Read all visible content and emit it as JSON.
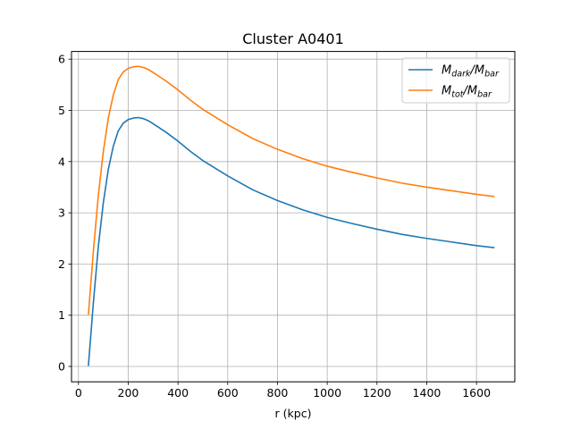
{
  "chart_data": {
    "type": "line",
    "title": "Cluster A0401",
    "xlabel": "r (kpc)",
    "ylabel": "",
    "xlim": [
      -28,
      1754
    ],
    "ylim": [
      -0.3,
      6.15
    ],
    "xticks": [
      0,
      200,
      400,
      600,
      800,
      1000,
      1200,
      1400,
      1600
    ],
    "yticks": [
      0,
      1,
      2,
      3,
      4,
      5,
      6
    ],
    "grid": true,
    "legend_position": "top-right",
    "series": [
      {
        "name": "M_dark/M_bar",
        "legend_main": "M",
        "legend_sub1": "dark",
        "legend_mid": "/M",
        "legend_sub2": "bar",
        "color": "#1f77b4",
        "x": [
          40,
          60,
          80,
          100,
          120,
          140,
          160,
          180,
          200,
          220,
          240,
          260,
          280,
          300,
          350,
          400,
          450,
          500,
          600,
          700,
          800,
          900,
          1000,
          1100,
          1200,
          1300,
          1400,
          1500,
          1600,
          1670
        ],
        "y": [
          0.02,
          1.25,
          2.35,
          3.2,
          3.85,
          4.3,
          4.6,
          4.75,
          4.82,
          4.85,
          4.86,
          4.84,
          4.8,
          4.74,
          4.58,
          4.4,
          4.2,
          4.02,
          3.72,
          3.45,
          3.24,
          3.06,
          2.91,
          2.79,
          2.68,
          2.58,
          2.5,
          2.43,
          2.36,
          2.32
        ]
      },
      {
        "name": "M_tot/M_bar",
        "legend_main": "M",
        "legend_sub1": "tot",
        "legend_mid": "/M",
        "legend_sub2": "bar",
        "color": "#ff7f0e",
        "x": [
          40,
          60,
          80,
          100,
          120,
          140,
          160,
          180,
          200,
          220,
          240,
          260,
          280,
          300,
          350,
          400,
          450,
          500,
          600,
          700,
          800,
          900,
          1000,
          1100,
          1200,
          1300,
          1400,
          1500,
          1600,
          1670
        ],
        "y": [
          1.02,
          2.25,
          3.35,
          4.2,
          4.85,
          5.3,
          5.6,
          5.75,
          5.82,
          5.85,
          5.86,
          5.84,
          5.8,
          5.74,
          5.58,
          5.4,
          5.2,
          5.02,
          4.72,
          4.45,
          4.24,
          4.06,
          3.91,
          3.79,
          3.68,
          3.58,
          3.5,
          3.43,
          3.36,
          3.32
        ]
      }
    ]
  }
}
